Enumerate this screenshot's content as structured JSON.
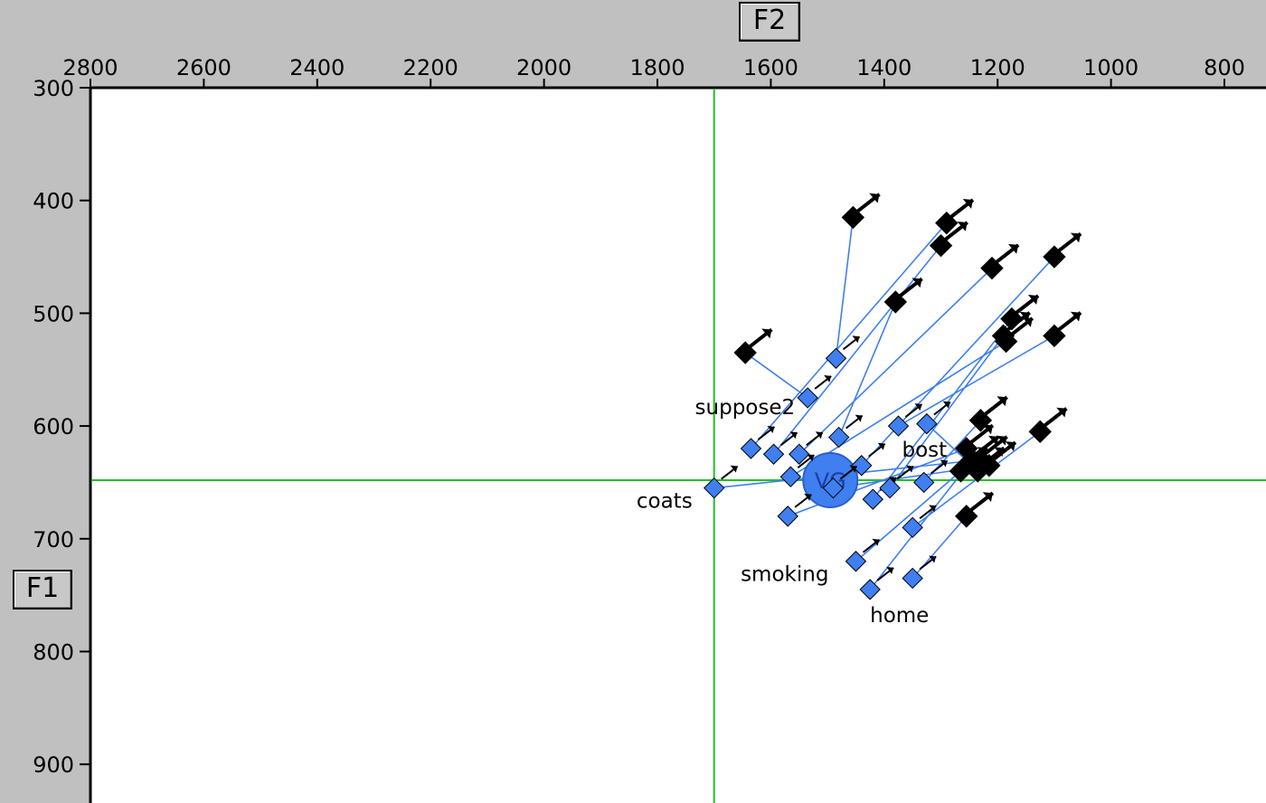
{
  "controls": {
    "x_axis_button": "F2",
    "y_axis_button": "F1"
  },
  "colors": {
    "background": "#c0c0c0",
    "plot": "#ffffff",
    "reference_lines": "#22c022",
    "token": "#3f7fef",
    "target": "#000000"
  },
  "chart_data": {
    "type": "scatter",
    "x_axis": {
      "label": "F2",
      "range": [
        2800,
        700
      ],
      "reversed": true,
      "ticks": [
        2800,
        2600,
        2400,
        2200,
        2000,
        1800,
        1600,
        1400,
        1200,
        1000,
        800
      ]
    },
    "y_axis": {
      "label": "F1",
      "range": [
        300,
        930
      ],
      "reversed": true,
      "ticks": [
        300,
        400,
        500,
        600,
        700,
        800,
        900
      ]
    },
    "reference_lines": {
      "F2": 1700,
      "F1": 648
    },
    "mean": {
      "label": "VG",
      "F2": 1495,
      "F1": 648
    },
    "tokens": [
      {
        "label": "coats",
        "F2": 1700,
        "F1": 655,
        "target": {
          "F2": 1230,
          "F1": 630
        }
      },
      {
        "label": "suppose2",
        "F2": 1535,
        "F1": 575,
        "target": {
          "F2": 1645,
          "F1": 535
        }
      },
      {
        "label": "bost",
        "F2": 1375,
        "F1": 600,
        "target": {
          "F2": 1100,
          "F1": 520
        }
      },
      {
        "label": "smoking",
        "F2": 1450,
        "F1": 720,
        "target": {
          "F2": 1265,
          "F1": 640
        }
      },
      {
        "label": "home",
        "F2": 1425,
        "F1": 745,
        "target": {
          "F2": 1245,
          "F1": 630
        }
      },
      {
        "label": "",
        "F2": 1485,
        "F1": 540,
        "target": {
          "F2": 1455,
          "F1": 415
        }
      },
      {
        "label": "",
        "F2": 1635,
        "F1": 620,
        "target": {
          "F2": 1290,
          "F1": 420
        }
      },
      {
        "label": "",
        "F2": 1595,
        "F1": 625,
        "target": {
          "F2": 1300,
          "F1": 440
        }
      },
      {
        "label": "",
        "F2": 1550,
        "F1": 625,
        "target": {
          "F2": 1210,
          "F1": 460
        }
      },
      {
        "label": "",
        "F2": 1480,
        "F1": 610,
        "target": {
          "F2": 1380,
          "F1": 490
        }
      },
      {
        "label": "",
        "F2": 1440,
        "F1": 635,
        "target": {
          "F2": 1100,
          "F1": 450
        }
      },
      {
        "label": "",
        "F2": 1420,
        "F1": 665,
        "target": {
          "F2": 1175,
          "F1": 505
        }
      },
      {
        "label": "",
        "F2": 1565,
        "F1": 645,
        "target": {
          "F2": 1185,
          "F1": 525
        }
      },
      {
        "label": "",
        "F2": 1390,
        "F1": 655,
        "target": {
          "F2": 1190,
          "F1": 520
        }
      },
      {
        "label": "",
        "F2": 1330,
        "F1": 650,
        "target": {
          "F2": 1230,
          "F1": 595
        }
      },
      {
        "label": "",
        "F2": 1325,
        "F1": 598,
        "target": {
          "F2": 1235,
          "F1": 640
        }
      },
      {
        "label": "",
        "F2": 1490,
        "F1": 655,
        "target": {
          "F2": 1215,
          "F1": 635
        }
      },
      {
        "label": "",
        "F2": 1350,
        "F1": 690,
        "target": {
          "F2": 1125,
          "F1": 605
        }
      },
      {
        "label": "",
        "F2": 1350,
        "F1": 735,
        "target": {
          "F2": 1255,
          "F1": 680
        }
      },
      {
        "label": "",
        "F2": 1570,
        "F1": 680,
        "target": {
          "F2": 1255,
          "F1": 620
        }
      }
    ]
  }
}
